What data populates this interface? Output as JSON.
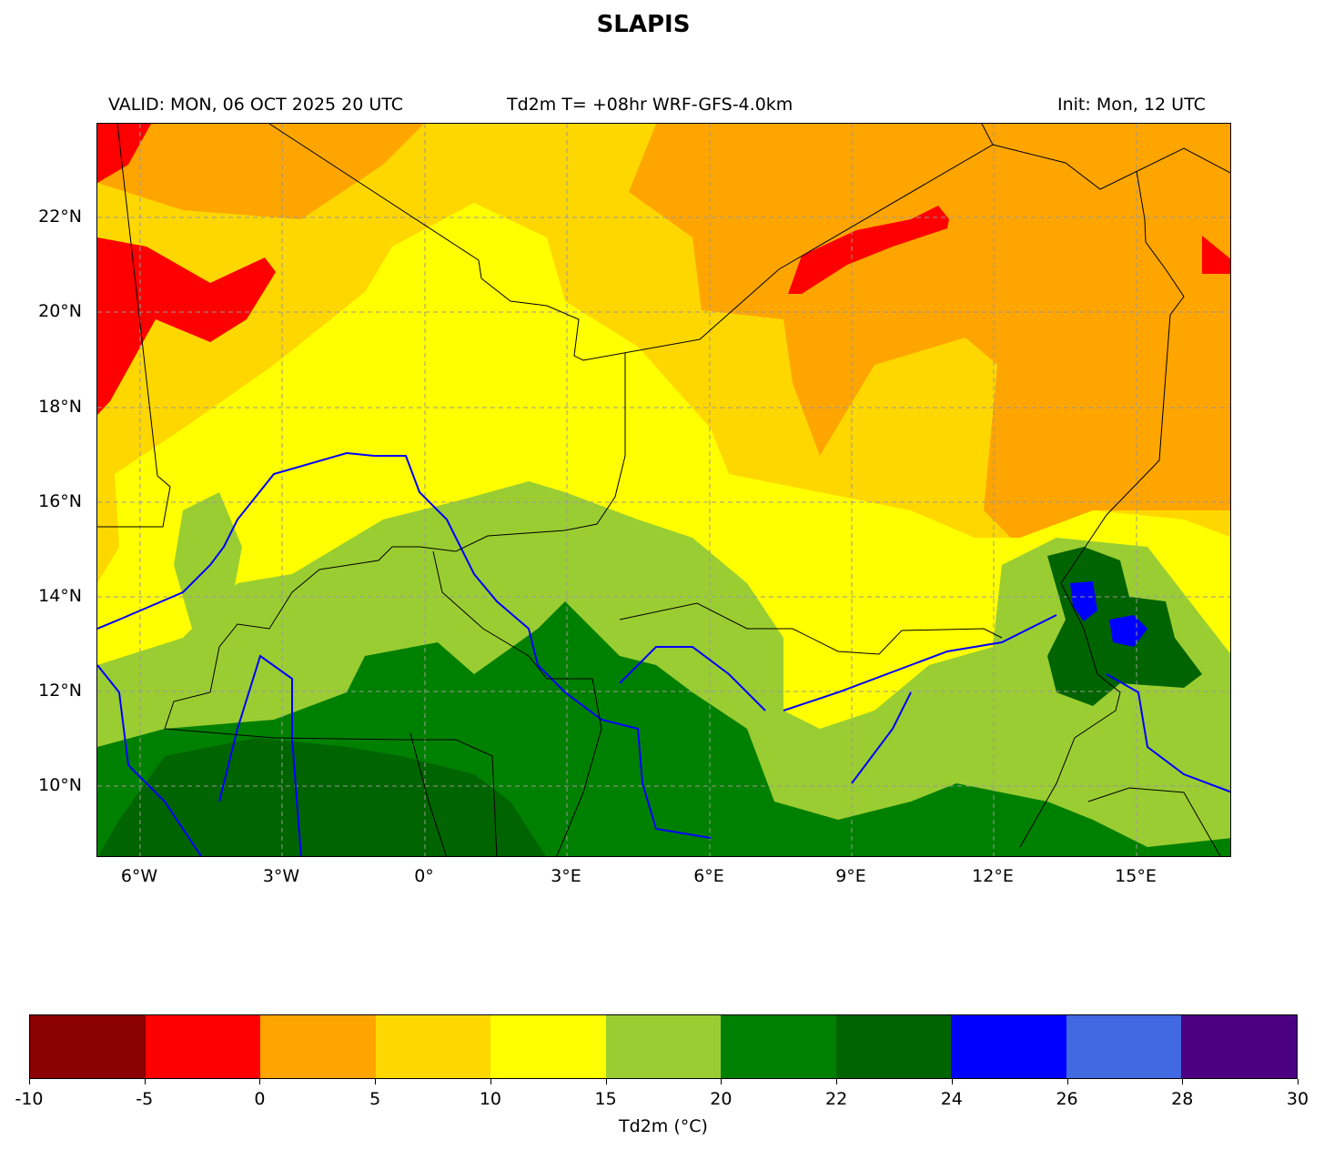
{
  "title": "SLAPIS",
  "header": {
    "valid": "VALID: MON, 06 OCT 2025 20 UTC",
    "center": "Td2m T= +08hr WRF-GFS-4.0km",
    "init": "Init: Mon, 12 UTC"
  },
  "map": {
    "lon_ticks": [
      "6°W",
      "3°W",
      "0°",
      "3°E",
      "6°E",
      "9°E",
      "12°E",
      "15°E"
    ],
    "lat_ticks": [
      "22°N",
      "20°N",
      "18°N",
      "16°N",
      "14°N",
      "12°N",
      "10°N"
    ],
    "gridlines": true,
    "river_color": "#0000ff",
    "border_color": "#000000"
  },
  "colorbar": {
    "label": "Td2m (°C)",
    "ticks": [
      "-10",
      "-5",
      "0",
      "5",
      "10",
      "15",
      "20",
      "22",
      "24",
      "26",
      "28",
      "30"
    ],
    "colors": [
      "#8b0000",
      "#ff0000",
      "#ffa500",
      "#ffd700",
      "#ffff00",
      "#9acd32",
      "#008000",
      "#006400",
      "#0000ff",
      "#4169e1",
      "#4b0082"
    ]
  }
}
